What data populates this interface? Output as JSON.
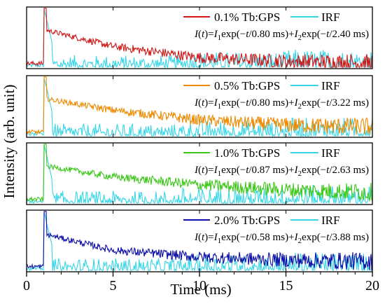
{
  "chart_data": {
    "type": "line",
    "xlabel": "Time (ms)",
    "ylabel": "Intensity (arb. unit)",
    "xlim": [
      0,
      20
    ],
    "xticks": [
      0,
      5,
      10,
      15,
      20
    ],
    "ylim": [
      0,
      1
    ],
    "grid": false,
    "legend_position": "top-right",
    "onset_ms": 1.0,
    "panels": [
      {
        "series": [
          {
            "name": "0.1% Tb:GPS",
            "color": "#d01818",
            "y_at_t": [
              [
                1.2,
                0.62
              ],
              [
                5,
                0.36
              ],
              [
                10,
                0.18
              ],
              [
                15,
                0.12
              ],
              [
                20,
                0.09
              ]
            ]
          },
          {
            "name": "IRF",
            "color": "#35d6e8",
            "width_ms": 0.5
          }
        ],
        "equation": {
          "I": "I",
          "t": "t",
          "eq": "=",
          "I1": "I",
          "s1": "1",
          "exp1": "exp(−",
          "tau1": "/0.80 ms)+",
          "I2": "I",
          "s2": "2",
          "exp2": "exp(−",
          "tau2": "/2.40 ms)"
        }
      },
      {
        "series": [
          {
            "name": "0.5% Tb:GPS",
            "color": "#ee8a00",
            "y_at_t": [
              [
                1.2,
                0.62
              ],
              [
                5,
                0.44
              ],
              [
                10,
                0.28
              ],
              [
                15,
                0.2
              ],
              [
                20,
                0.17
              ]
            ]
          },
          {
            "name": "IRF",
            "color": "#35d6e8",
            "width_ms": 0.5
          }
        ],
        "equation": {
          "I": "I",
          "t": "t",
          "eq": "=",
          "I1": "I",
          "s1": "1",
          "exp1": "exp(−",
          "tau1": "/0.80 ms)+",
          "I2": "I",
          "s2": "2",
          "exp2": "exp(−",
          "tau2": "/3.22 ms)"
        }
      },
      {
        "series": [
          {
            "name": "1.0% Tb:GPS",
            "color": "#3ec81a",
            "y_at_t": [
              [
                1.2,
                0.62
              ],
              [
                5,
                0.45
              ],
              [
                10,
                0.32
              ],
              [
                15,
                0.24
              ],
              [
                20,
                0.2
              ]
            ]
          },
          {
            "name": "IRF",
            "color": "#35d6e8",
            "width_ms": 0.5
          }
        ],
        "equation": {
          "I": "I",
          "t": "t",
          "eq": "=",
          "I1": "I",
          "s1": "1",
          "exp1": "exp(−",
          "tau1": "/0.87 ms)+",
          "I2": "I",
          "s2": "2",
          "exp2": "exp(−",
          "tau2": "/2.63 ms)"
        }
      },
      {
        "series": [
          {
            "name": "2.0% Tb:GPS",
            "color": "#0c0fa6",
            "y_at_t": [
              [
                1.2,
                0.6
              ],
              [
                5,
                0.35
              ],
              [
                10,
                0.24
              ],
              [
                15,
                0.19
              ],
              [
                20,
                0.17
              ]
            ]
          },
          {
            "name": "IRF",
            "color": "#35d6e8",
            "width_ms": 0.5
          }
        ],
        "equation": {
          "I": "I",
          "t": "t",
          "eq": "=",
          "I1": "I",
          "s1": "1",
          "exp1": "exp(−",
          "tau1": "/0.58 ms)+",
          "I2": "I",
          "s2": "2",
          "exp2": "exp(−",
          "tau2": "/3.88 ms)"
        }
      }
    ]
  }
}
